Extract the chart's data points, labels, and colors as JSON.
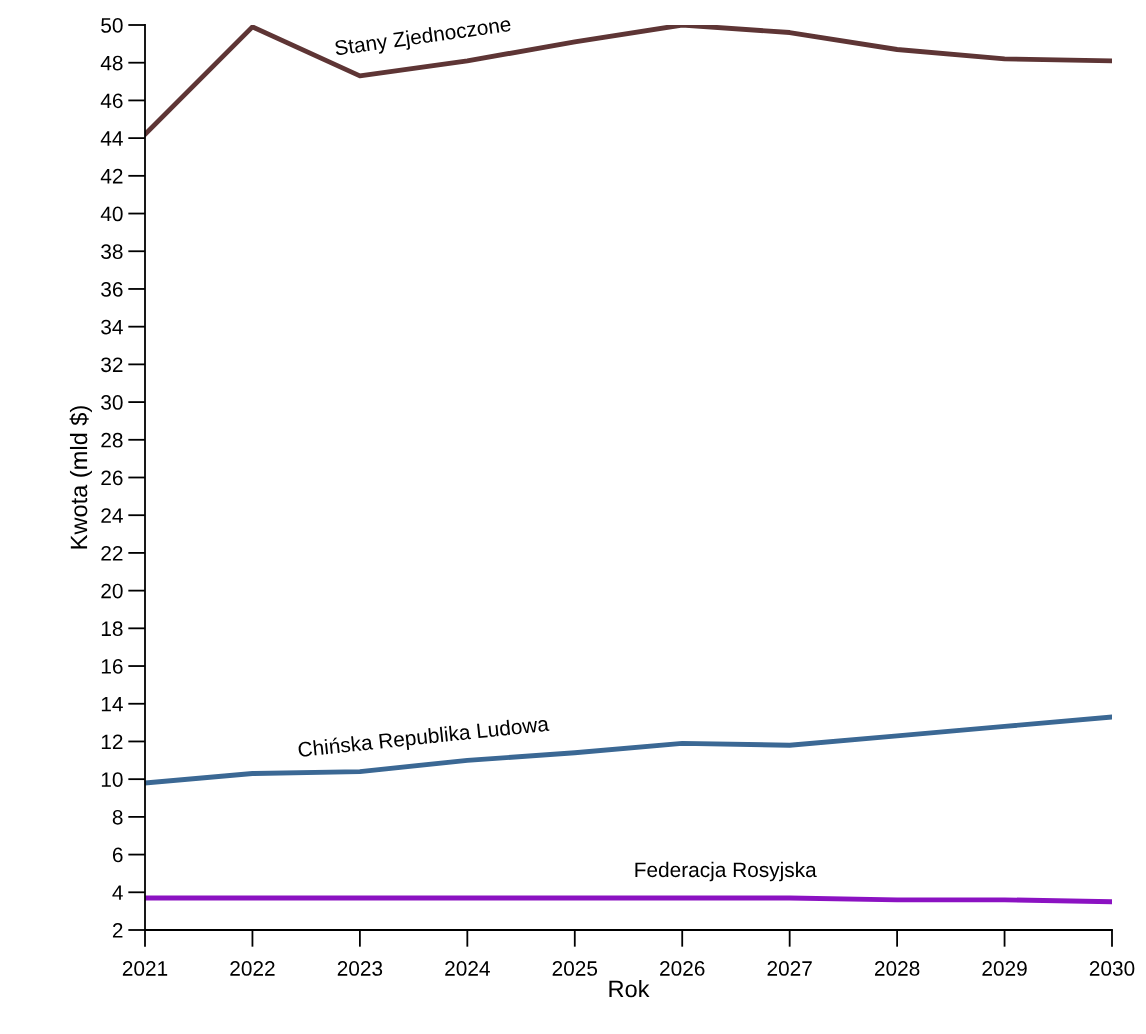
{
  "chart_data": {
    "type": "line",
    "xlabel": "Rok",
    "ylabel": "Kwota (mld $)",
    "x": [
      2021,
      2022,
      2023,
      2024,
      2025,
      2026,
      2027,
      2028,
      2029,
      2030
    ],
    "series": [
      {
        "name": "Stany Zjednoczone",
        "color": "#5e3535",
        "values": [
          44.2,
          49.9,
          47.3,
          48.1,
          49.1,
          50.0,
          49.6,
          48.7,
          48.2,
          48.1
        ]
      },
      {
        "name": "Chińska Republika Ludowa",
        "color": "#3b6894",
        "values": [
          9.8,
          10.3,
          10.4,
          11.0,
          11.4,
          11.9,
          11.8,
          12.3,
          12.8,
          13.3
        ]
      },
      {
        "name": "Federacja Rosyjska",
        "color": "#8b12c2",
        "values": [
          3.7,
          3.7,
          3.7,
          3.7,
          3.7,
          3.7,
          3.7,
          3.6,
          3.6,
          3.5
        ]
      }
    ],
    "xlim": [
      2021,
      2030
    ],
    "xticks": [
      2021,
      2022,
      2023,
      2024,
      2025,
      2026,
      2027,
      2028,
      2029,
      2030
    ],
    "ylim": [
      2,
      50
    ],
    "yticks": [
      2,
      4,
      6,
      8,
      10,
      12,
      14,
      16,
      18,
      20,
      22,
      24,
      26,
      28,
      30,
      32,
      34,
      36,
      38,
      40,
      42,
      44,
      46,
      48,
      50
    ],
    "grid": false,
    "legend": false,
    "marker": "none",
    "line_style": "solid"
  }
}
